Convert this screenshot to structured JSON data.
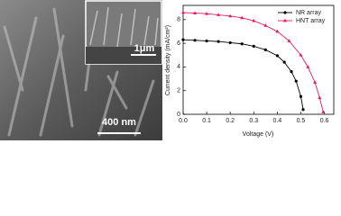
{
  "images": {
    "main_scale": "400 nm",
    "inset_scale": "1μm"
  },
  "chart_data": {
    "type": "line",
    "xlabel": "Voltage (V)",
    "ylabel": "Current density (mA/cm²)",
    "xlim": [
      0,
      0.64
    ],
    "ylim": [
      0,
      9.2
    ],
    "xticks": [
      {
        "value": 0,
        "label": "0.0"
      },
      0.1,
      0.2,
      0.3,
      0.4,
      0.5,
      0.6
    ],
    "yticks": [
      0,
      2,
      4,
      6,
      8
    ],
    "legend": "upper-right",
    "series": [
      {
        "name": "NR array",
        "color": "#000000",
        "marker": "circle",
        "x": [
          0,
          0.05,
          0.1,
          0.15,
          0.2,
          0.25,
          0.3,
          0.35,
          0.4,
          0.43,
          0.46,
          0.48,
          0.5,
          0.51
        ],
        "values": [
          6.3,
          6.25,
          6.2,
          6.15,
          6.05,
          5.95,
          5.75,
          5.45,
          4.95,
          4.4,
          3.6,
          2.8,
          1.5,
          0.4
        ]
      },
      {
        "name": "HNT array",
        "color": "#e8185a",
        "marker": "triangle",
        "x": [
          0,
          0.05,
          0.1,
          0.15,
          0.2,
          0.25,
          0.3,
          0.35,
          0.4,
          0.45,
          0.5,
          0.53,
          0.56,
          0.58,
          0.595
        ],
        "values": [
          8.6,
          8.55,
          8.5,
          8.4,
          8.3,
          8.15,
          7.9,
          7.5,
          7.0,
          6.2,
          5.0,
          4.0,
          2.7,
          1.4,
          0.2
        ]
      }
    ]
  }
}
